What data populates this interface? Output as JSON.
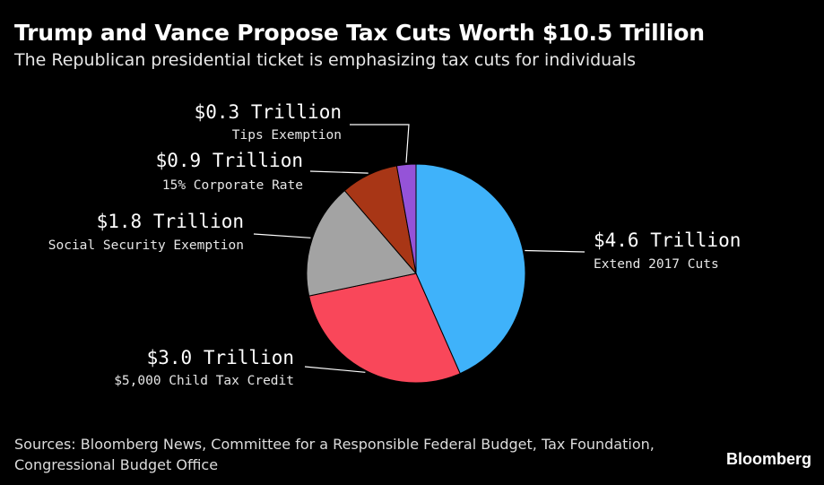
{
  "chart_data": {
    "type": "pie",
    "title": "Trump and Vance Propose Tax Cuts Worth $10.5 Trillion",
    "subtitle": "The Republican presidential ticket is emphasizing tax cuts for individuals",
    "unit": "Trillion",
    "slices": [
      {
        "category": "Extend 2017 Cuts",
        "value": 4.6,
        "value_label": "$4.6 Trillion",
        "color": "#3fb2fa"
      },
      {
        "category": "$5,000 Child Tax Credit",
        "value": 3.0,
        "value_label": "$3.0 Trillion",
        "color": "#f9475a"
      },
      {
        "category": "Social Security Exemption",
        "value": 1.8,
        "value_label": "$1.8 Trillion",
        "color": "#a3a3a3"
      },
      {
        "category": "15% Corporate Rate",
        "value": 0.9,
        "value_label": "$0.9 Trillion",
        "color": "#a83616"
      },
      {
        "category": "Tips Exemption",
        "value": 0.3,
        "value_label": "$0.3 Trillion",
        "color": "#9553d8"
      }
    ],
    "source": "Sources: Bloomberg News, Committee for a Responsible Federal Budget, Tax Foundation, Congressional Budget Office"
  },
  "brand": "Bloomberg"
}
